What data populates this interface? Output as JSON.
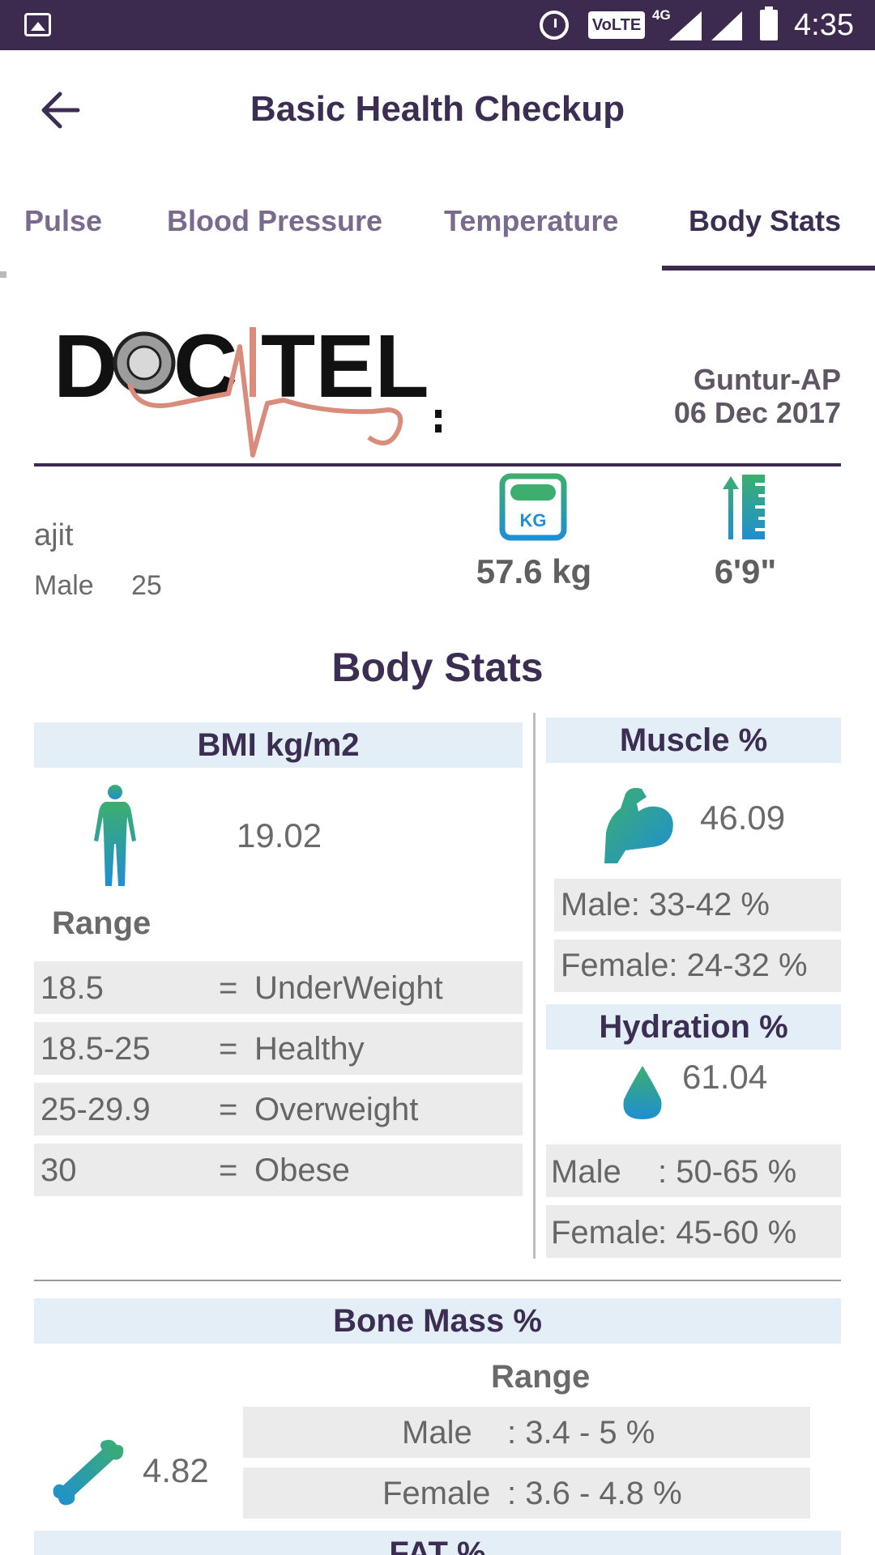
{
  "status_bar": {
    "network_badge": "VoLTE",
    "network_type": "4G",
    "time": "4:35"
  },
  "header": {
    "title": "Basic Health Checkup"
  },
  "tabs": [
    {
      "label": "Pulse",
      "active": false
    },
    {
      "label": "Blood Pressure",
      "active": false
    },
    {
      "label": "Temperature",
      "active": false
    },
    {
      "label": "Body Stats",
      "active": true
    }
  ],
  "report": {
    "logo_text": "DOCTEL",
    "location": "Guntur-AP",
    "date": "06 Dec 2017"
  },
  "patient": {
    "name": "ajit",
    "gender": "Male",
    "age": "25",
    "weight": "57.6 kg",
    "height": "6'9\""
  },
  "body_stats": {
    "title": "Body Stats",
    "bmi": {
      "title": "BMI kg/m2",
      "value": "19.02",
      "range_label": "Range",
      "ranges": [
        {
          "value": "18.5",
          "eq": "=",
          "label": "UnderWeight"
        },
        {
          "value": "18.5-25",
          "eq": "=",
          "label": "Healthy"
        },
        {
          "value": "25-29.9",
          "eq": "=",
          "label": "Overweight"
        },
        {
          "value": "30",
          "eq": "=",
          "label": "Obese"
        }
      ]
    },
    "muscle": {
      "title": "Muscle %",
      "value": "46.09",
      "male_range": "Male: 33-42 %",
      "female_range": "Female: 24-32 %"
    },
    "hydration": {
      "title": "Hydration %",
      "value": "61.04",
      "male_label": "Male",
      "male_range": ": 50-65 %",
      "female_label": "Female",
      "female_range": ": 45-60 %"
    },
    "bone_mass": {
      "title": "Bone Mass %",
      "value": "4.82",
      "range_label": "Range",
      "male_label": "Male",
      "male_range": ": 3.4 - 5 %",
      "female_label": "Female",
      "female_range": ": 3.6 - 4.8 %"
    },
    "fat": {
      "title": "FAT %"
    }
  },
  "colors": {
    "primary": "#3d2a4f",
    "header_bg": "#e3eef6",
    "row_bg": "#ebebeb",
    "icon_blue": "#1e8fd2",
    "icon_green": "#3dae6e"
  }
}
